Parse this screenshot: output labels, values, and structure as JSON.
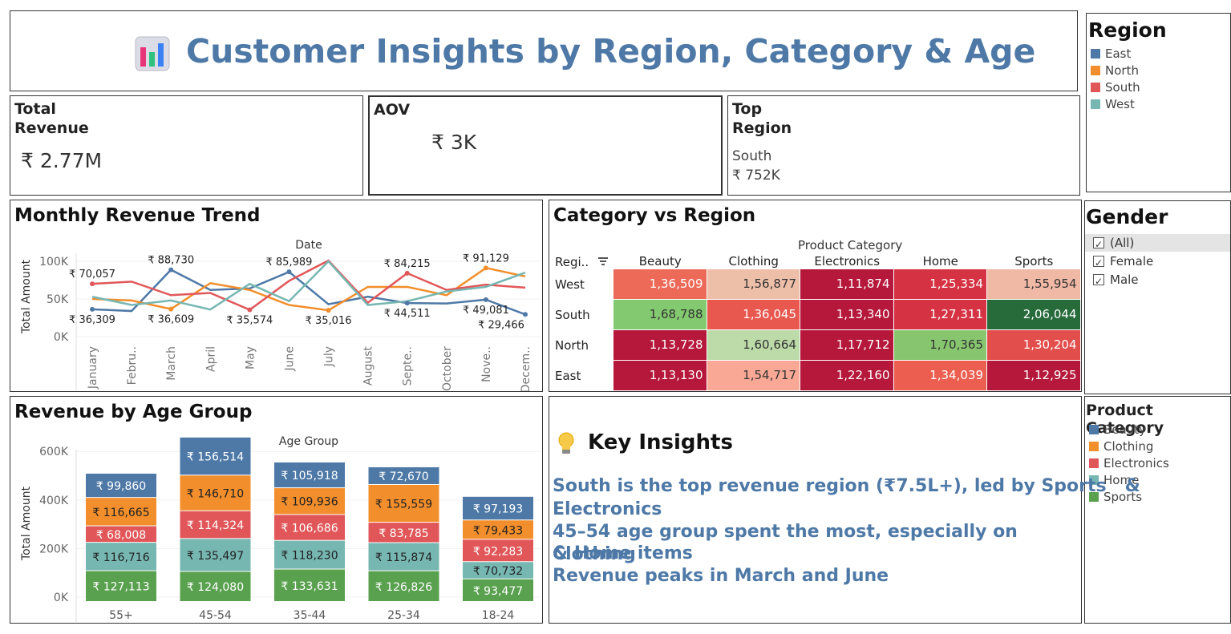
{
  "header": {
    "title": "Customer Insights by Region, Category & Age",
    "icon": "bar-chart-icon"
  },
  "kpis": {
    "revenue": {
      "title_line1": "Total",
      "title_line2": "Revenue",
      "value": "₹ 2.77M"
    },
    "aov": {
      "title": "AOV",
      "value": "₹ 3K"
    },
    "top_region": {
      "title_line1": "Top",
      "title_line2": "Region",
      "region": "South",
      "value": "₹ 752K"
    }
  },
  "legend_region": {
    "title": "Region",
    "items": [
      {
        "label": "East",
        "color": "#4e79a7"
      },
      {
        "label": "North",
        "color": "#f28e2b"
      },
      {
        "label": "South",
        "color": "#e15759"
      },
      {
        "label": "West",
        "color": "#76b7b2"
      }
    ]
  },
  "filter_gender": {
    "title": "Gender",
    "options": [
      {
        "label": "(All)",
        "checked": true
      },
      {
        "label": "Female",
        "checked": true
      },
      {
        "label": "Male",
        "checked": true
      }
    ]
  },
  "legend_category": {
    "title": "Product Category",
    "items": [
      {
        "label": "Beauty",
        "color": "#4e79a7"
      },
      {
        "label": "Clothing",
        "color": "#f28e2b"
      },
      {
        "label": "Electronics",
        "color": "#e15759"
      },
      {
        "label": "Home",
        "color": "#76b7b2"
      },
      {
        "label": "Sports",
        "color": "#59a14f"
      }
    ]
  },
  "insights": {
    "title": "Key Insights",
    "icon": "lightbulb-icon",
    "lines": [
      "South is the top revenue region (₹7.5L+), led by Sports   &",
      "Electronics",
      "45–54 age group spent the most, especially on Clothing",
      "& Home items",
      "Revenue peaks in March and June"
    ]
  },
  "chart_data": [
    {
      "type": "line",
      "title": "Monthly Revenue Trend",
      "xlabel": "Date",
      "ylabel": "Total Amount",
      "x": [
        "January",
        "Febru..",
        "March",
        "April",
        "May",
        "June",
        "July",
        "August",
        "Septe..",
        "October",
        "Nove..",
        "Decem.."
      ],
      "yticks": [
        "0K",
        "50K",
        "100K"
      ],
      "ylim": [
        0,
        100000
      ],
      "series": [
        {
          "name": "East",
          "color": "#4e79a7",
          "values": [
            36309,
            34000,
            88730,
            62000,
            64000,
            85989,
            43000,
            53000,
            44511,
            44000,
            49081,
            29466
          ]
        },
        {
          "name": "North",
          "color": "#f28e2b",
          "values": [
            50000,
            48000,
            36609,
            71000,
            62000,
            42000,
            35016,
            66000,
            66000,
            55000,
            91129,
            80000
          ]
        },
        {
          "name": "South",
          "color": "#e15759",
          "values": [
            70057,
            73000,
            55000,
            58000,
            35574,
            74000,
            101000,
            45000,
            84215,
            62000,
            69000,
            65000
          ]
        },
        {
          "name": "West",
          "color": "#76b7b2",
          "values": [
            53000,
            42000,
            48000,
            36000,
            70000,
            47000,
            100000,
            42000,
            47000,
            60000,
            66000,
            85000
          ]
        }
      ],
      "labels": [
        {
          "text": "₹ 36,309",
          "series": "East",
          "index": 0
        },
        {
          "text": "₹ 70,057",
          "series": "South",
          "index": 0
        },
        {
          "text": "₹ 88,730",
          "series": "East",
          "index": 2
        },
        {
          "text": "₹ 36,609",
          "series": "North",
          "index": 2
        },
        {
          "text": "₹ 35,574",
          "series": "South",
          "index": 4
        },
        {
          "text": "₹ 85,989",
          "series": "East",
          "index": 5
        },
        {
          "text": "₹ 35,016",
          "series": "North",
          "index": 6
        },
        {
          "text": "₹ 84,215",
          "series": "South",
          "index": 8
        },
        {
          "text": "₹ 44,511",
          "series": "East",
          "index": 8
        },
        {
          "text": "₹ 91,129",
          "series": "North",
          "index": 10
        },
        {
          "text": "₹ 49,081",
          "series": "East",
          "index": 10
        },
        {
          "text": "₹ 29,466",
          "series": "East",
          "index": 11
        }
      ]
    },
    {
      "type": "heatmap",
      "title": "Category vs Region",
      "col_header": "Product Category",
      "row_header": "Regi..",
      "columns": [
        "Beauty",
        "Clothing",
        "Electronics",
        "Home",
        "Sports"
      ],
      "rows": [
        "West",
        "South",
        "North",
        "East"
      ],
      "values": [
        [
          "1,36,509",
          "1,56,877",
          "1,11,874",
          "1,25,334",
          "1,55,954"
        ],
        [
          "1,68,788",
          "1,36,045",
          "1,13,340",
          "1,27,311",
          "2,06,044"
        ],
        [
          "1,13,728",
          "1,60,664",
          "1,17,712",
          "1,70,365",
          "1,30,204"
        ],
        [
          "1,13,130",
          "1,54,717",
          "1,22,160",
          "1,34,039",
          "1,12,925"
        ]
      ],
      "colors": [
        [
          "#ec6a57",
          "#eebfa8",
          "#b5183a",
          "#d53343",
          "#f0b9a5"
        ],
        [
          "#83c96f",
          "#e8584f",
          "#b5183a",
          "#d53343",
          "#276b3b"
        ],
        [
          "#b5183a",
          "#bcdba8",
          "#b5183a",
          "#87c66f",
          "#e24e4b"
        ],
        [
          "#b5183a",
          "#f9a895",
          "#b5183a",
          "#ec5e50",
          "#b5183a"
        ]
      ],
      "text_colors": [
        [
          "#ffffff",
          "#333333",
          "#ffffff",
          "#ffffff",
          "#333333"
        ],
        [
          "#333333",
          "#ffffff",
          "#ffffff",
          "#ffffff",
          "#ffffff"
        ],
        [
          "#ffffff",
          "#333333",
          "#ffffff",
          "#333333",
          "#ffffff"
        ],
        [
          "#ffffff",
          "#333333",
          "#ffffff",
          "#ffffff",
          "#ffffff"
        ]
      ]
    },
    {
      "type": "bar",
      "stacked": true,
      "title": "Revenue by Age Group",
      "xlabel": "Age Group",
      "ylabel": "Total Amount",
      "yticks": [
        "0K",
        "200K",
        "400K",
        "600K"
      ],
      "ylim": [
        0,
        680000
      ],
      "categories": [
        "55+",
        "45-54",
        "35-44",
        "25-34",
        "18-24"
      ],
      "series": [
        {
          "name": "Sports",
          "color": "#59a14f",
          "values": [
            127113,
            124080,
            133631,
            126826,
            93477
          ],
          "labels": [
            "₹ 127,113",
            "₹ 124,080",
            "₹ 133,631",
            "₹ 126,826",
            "₹ 93,477"
          ]
        },
        {
          "name": "Home",
          "color": "#76b7b2",
          "values": [
            116716,
            135497,
            118230,
            115874,
            70732
          ],
          "labels": [
            "₹ 116,716",
            "₹ 135,497",
            "₹ 118,230",
            "₹ 115,874",
            "₹ 70,732"
          ]
        },
        {
          "name": "Electronics",
          "color": "#e15759",
          "values": [
            68008,
            114324,
            106686,
            83785,
            92283
          ],
          "labels": [
            "₹ 68,008",
            "₹ 114,324",
            "₹ 106,686",
            "₹ 83,785",
            "₹ 92,283"
          ]
        },
        {
          "name": "Clothing",
          "color": "#f28e2b",
          "values": [
            116665,
            146710,
            109936,
            155559,
            79433
          ],
          "labels": [
            "₹ 116,665",
            "₹ 146,710",
            "₹ 109,936",
            "₹ 155,559",
            "₹ 79,433"
          ]
        },
        {
          "name": "Beauty",
          "color": "#4e79a7",
          "values": [
            99860,
            156514,
            105918,
            72670,
            97193
          ],
          "labels": [
            "₹ 99,860",
            "₹ 156,514",
            "₹ 105,918",
            "₹ 72,670",
            "₹ 97,193"
          ]
        }
      ]
    }
  ]
}
